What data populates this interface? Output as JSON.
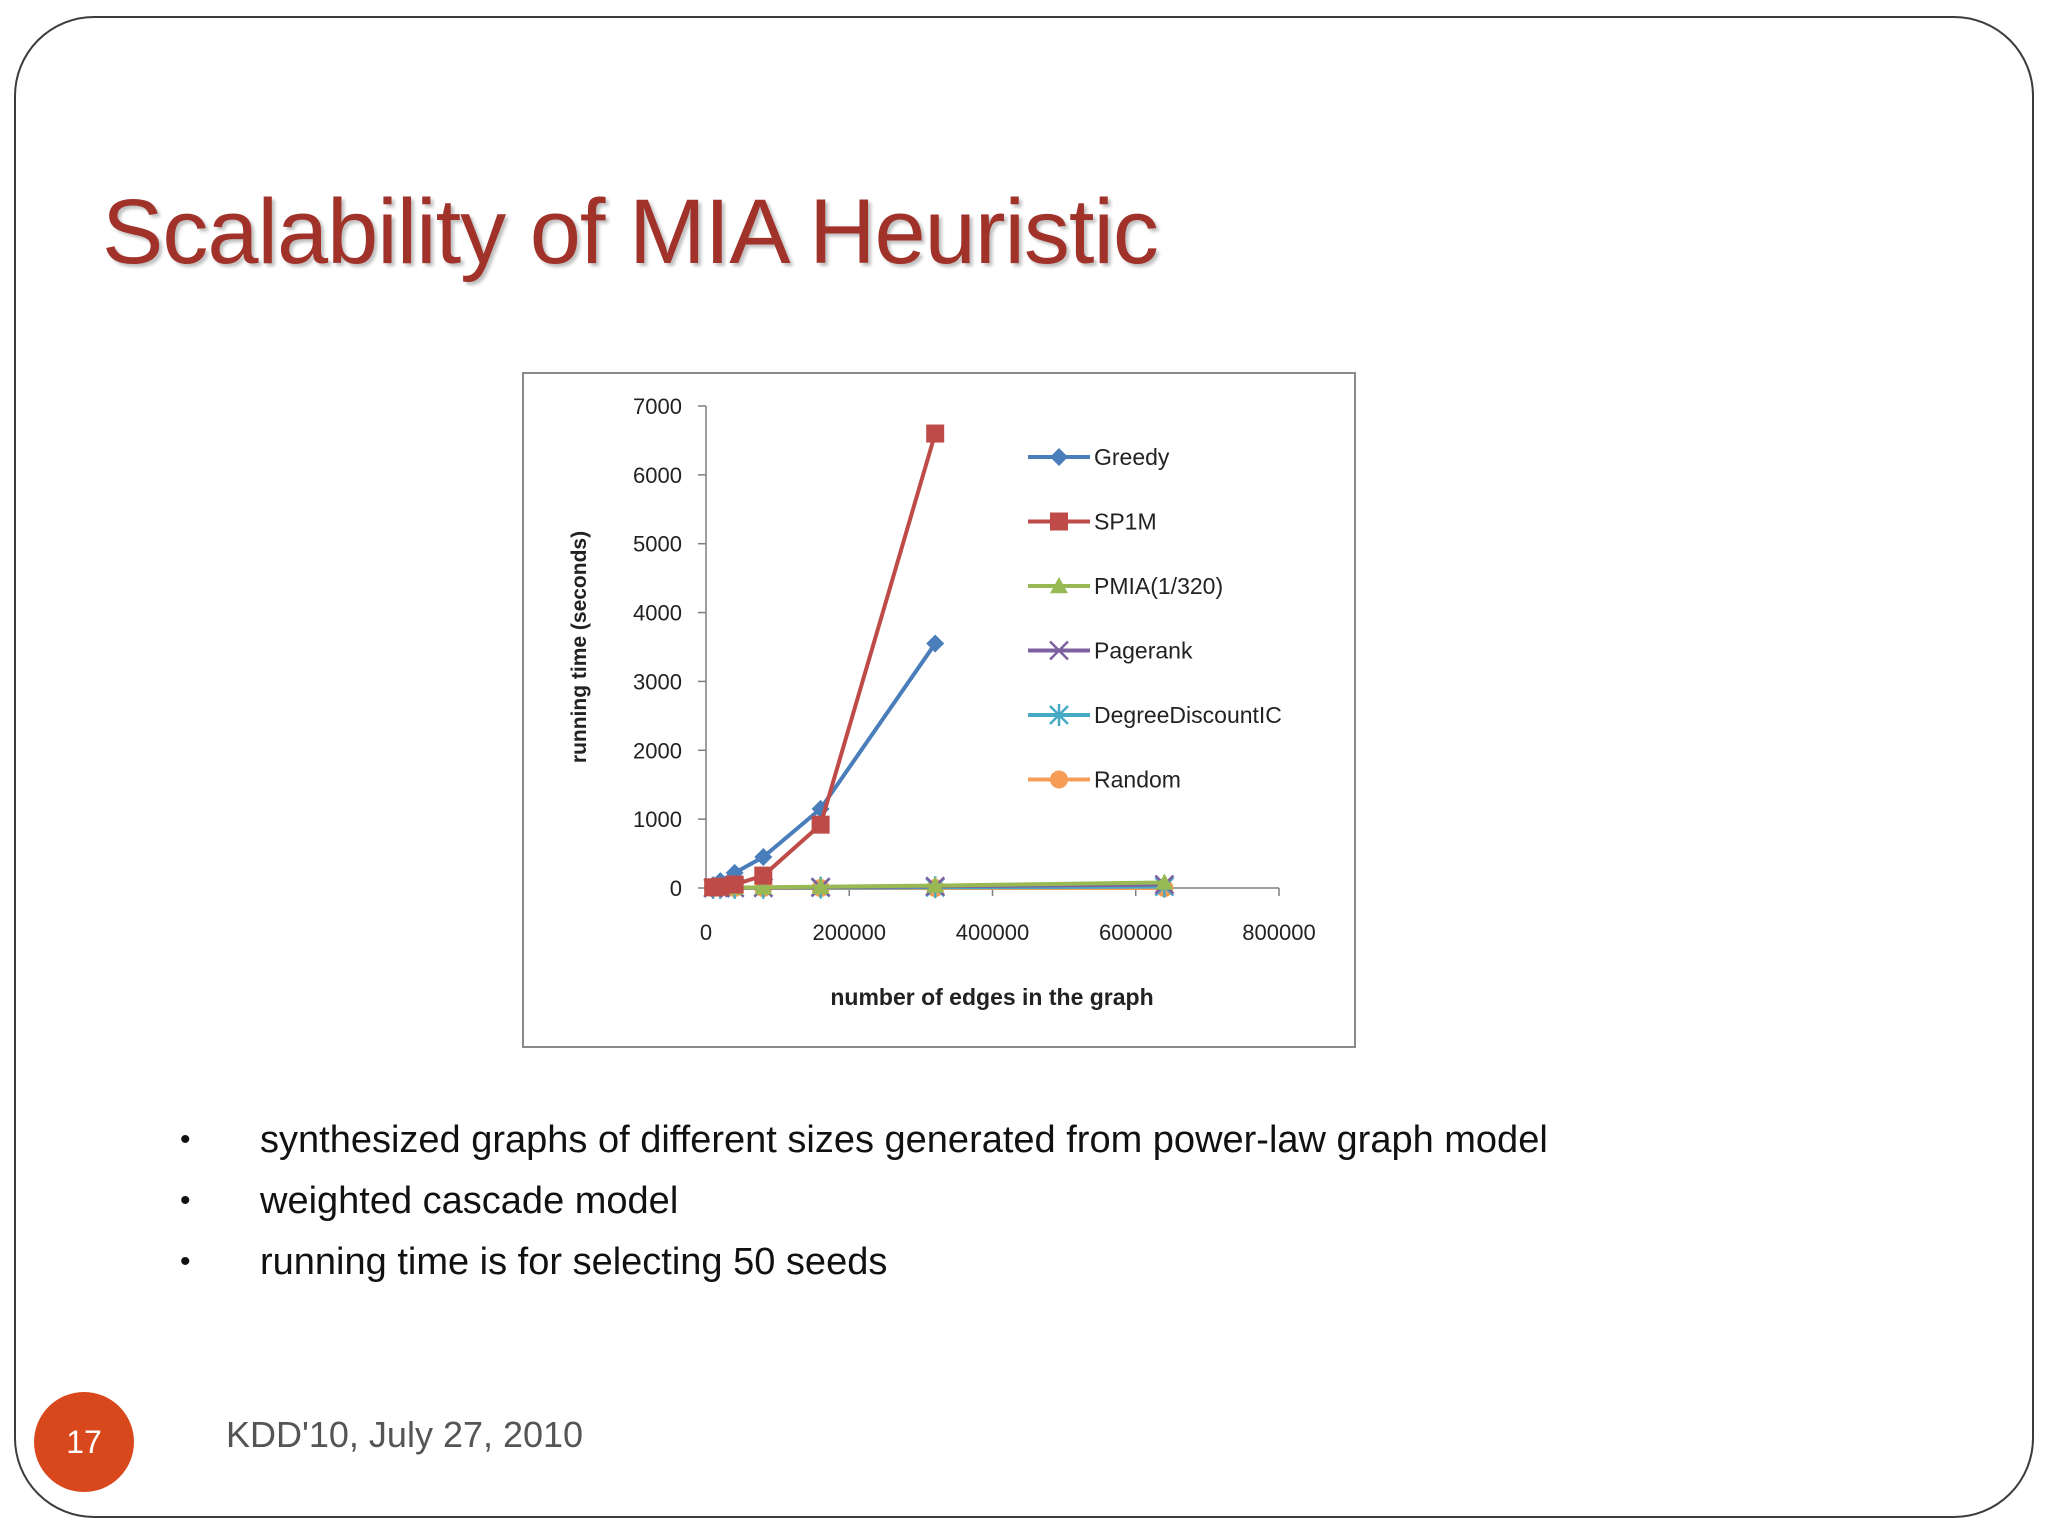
{
  "slide": {
    "title": "Scalability of MIA Heuristic",
    "bullets": [
      "synthesized graphs of different sizes generated from power-law graph model",
      "weighted cascade model",
      "running time is for selecting 50 seeds"
    ],
    "page_number": "17",
    "footer": "KDD'10, July 27, 2010",
    "colors": {
      "title": "#a0322a",
      "badge": "#d9471c"
    }
  },
  "chart_data": {
    "type": "line",
    "title": "",
    "xlabel": "number of edges in the graph",
    "ylabel": "running time (seconds)",
    "xlim": [
      0,
      800000
    ],
    "ylim": [
      0,
      7000
    ],
    "xticks": [
      0,
      200000,
      400000,
      600000,
      800000
    ],
    "yticks": [
      0,
      1000,
      2000,
      3000,
      4000,
      5000,
      6000,
      7000
    ],
    "grid": false,
    "legend_position": "right",
    "series": [
      {
        "name": "Greedy",
        "color": "#4a7ebb",
        "marker": "diamond",
        "x": [
          10000,
          20000,
          40000,
          80000,
          160000,
          320000
        ],
        "y": [
          40,
          100,
          220,
          450,
          1150,
          3550
        ]
      },
      {
        "name": "SP1M",
        "color": "#be4b48",
        "marker": "square",
        "x": [
          10000,
          20000,
          40000,
          80000,
          160000,
          320000
        ],
        "y": [
          10,
          20,
          50,
          180,
          920,
          6600
        ]
      },
      {
        "name": "PMIA(1/320)",
        "color": "#98b954",
        "marker": "triangle",
        "x": [
          10000,
          20000,
          40000,
          80000,
          160000,
          320000,
          640000
        ],
        "y": [
          2,
          3,
          5,
          10,
          18,
          35,
          80
        ]
      },
      {
        "name": "Pagerank",
        "color": "#7d60a0",
        "marker": "x",
        "x": [
          10000,
          20000,
          40000,
          80000,
          160000,
          320000,
          640000
        ],
        "y": [
          1,
          2,
          3,
          6,
          12,
          25,
          50
        ]
      },
      {
        "name": "DegreeDiscountIC",
        "color": "#46aac5",
        "marker": "star",
        "x": [
          10000,
          20000,
          40000,
          80000,
          160000,
          320000,
          640000
        ],
        "y": [
          1,
          1,
          2,
          3,
          5,
          10,
          20
        ]
      },
      {
        "name": "Random",
        "color": "#f59d56",
        "marker": "circle",
        "x": [
          10000,
          20000,
          40000,
          80000,
          160000,
          320000,
          640000
        ],
        "y": [
          0,
          0,
          0,
          0,
          0,
          0,
          0
        ]
      }
    ]
  }
}
